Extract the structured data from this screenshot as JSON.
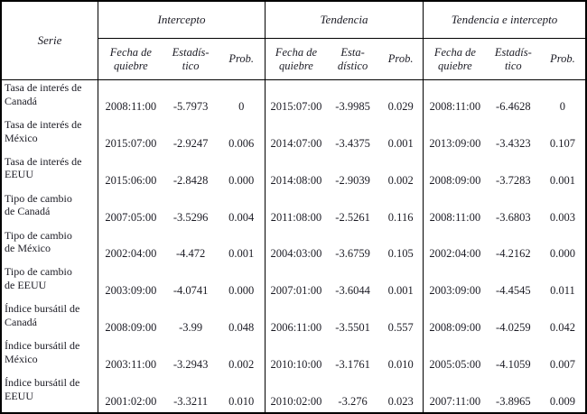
{
  "table": {
    "serie_header": "Serie",
    "groups": [
      {
        "title": "Intercepto",
        "subheaders": [
          "Fecha de\nquiebre",
          "Estadís-\ntico",
          "Prob."
        ]
      },
      {
        "title": "Tendencia",
        "subheaders": [
          "Fecha de\nquiebre",
          "Esta-\ndístico",
          "Prob."
        ]
      },
      {
        "title": "Tendencia e intercepto",
        "subheaders": [
          "Fecha de\nquiebre",
          "Estadís-\ntico",
          "Prob."
        ]
      }
    ],
    "sub_column_names": [
      "fecha-quiebre",
      "estadistico",
      "prob"
    ],
    "rows": [
      {
        "serie": "Tasa de interés de\nCanadá",
        "intercepto": [
          "2008:11:00",
          "-5.7973",
          "0"
        ],
        "tendencia": [
          "2015:07:00",
          "-3.9985",
          "0.029"
        ],
        "tendencia_intercepto": [
          "2008:11:00",
          "-6.4628",
          "0"
        ]
      },
      {
        "serie": "Tasa de interés de\nMéxico",
        "intercepto": [
          "2015:07:00",
          "-2.9247",
          "0.006"
        ],
        "tendencia": [
          "2014:07:00",
          "-3.4375",
          "0.001"
        ],
        "tendencia_intercepto": [
          "2013:09:00",
          "-3.4323",
          "0.107"
        ]
      },
      {
        "serie": "Tasa de interés de\nEEUU",
        "intercepto": [
          "2015:06:00",
          "-2.8428",
          "0.000"
        ],
        "tendencia": [
          "2014:08:00",
          "-2.9039",
          "0.002"
        ],
        "tendencia_intercepto": [
          "2008:09:00",
          "-3.7283",
          "0.001"
        ]
      },
      {
        "serie": "Tipo de cambio\nde Canadá",
        "intercepto": [
          "2007:05:00",
          "-3.5296",
          "0.004"
        ],
        "tendencia": [
          "2011:08:00",
          "-2.5261",
          "0.116"
        ],
        "tendencia_intercepto": [
          "2008:11:00",
          "-3.6803",
          "0.003"
        ]
      },
      {
        "serie": "Tipo de cambio\nde México",
        "intercepto": [
          "2002:04:00",
          "-4.472",
          "0.001"
        ],
        "tendencia": [
          "2004:03:00",
          "-3.6759",
          "0.105"
        ],
        "tendencia_intercepto": [
          "2002:04:00",
          "-4.2162",
          "0.000"
        ]
      },
      {
        "serie": "Tipo de cambio\nde EEUU",
        "intercepto": [
          "2003:09:00",
          "-4.0741",
          "0.000"
        ],
        "tendencia": [
          "2007:01:00",
          "-3.6044",
          "0.001"
        ],
        "tendencia_intercepto": [
          "2003:09:00",
          "-4.4545",
          "0.011"
        ]
      },
      {
        "serie": "Índice bursátil de\nCanadá",
        "intercepto": [
          "2008:09:00",
          "-3.99",
          "0.048"
        ],
        "tendencia": [
          "2006:11:00",
          "-3.5501",
          "0.557"
        ],
        "tendencia_intercepto": [
          "2008:09:00",
          "-4.0259",
          "0.042"
        ]
      },
      {
        "serie": "Índice bursátil de\nMéxico",
        "intercepto": [
          "2003:11:00",
          "-3.2943",
          "0.002"
        ],
        "tendencia": [
          "2010:10:00",
          "-3.1761",
          "0.010"
        ],
        "tendencia_intercepto": [
          "2005:05:00",
          "-4.1059",
          "0.007"
        ]
      },
      {
        "serie": "Índice bursátil de\nEEUU",
        "intercepto": [
          "2001:02:00",
          "-3.3211",
          "0.010"
        ],
        "tendencia": [
          "2010:02:00",
          "-3.276",
          "0.023"
        ],
        "tendencia_intercepto": [
          "2007:11:00",
          "-3.8965",
          "0.009"
        ]
      }
    ]
  }
}
